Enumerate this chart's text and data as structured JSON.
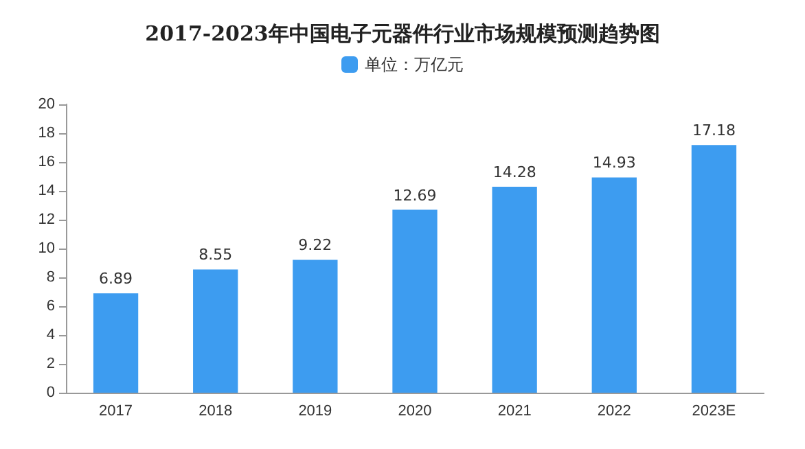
{
  "chart_data": {
    "type": "bar",
    "title": "2017-2023年中国电子元器件行业市场规模预测趋势图",
    "categories": [
      "2017",
      "2018",
      "2019",
      "2020",
      "2021",
      "2022",
      "2023E"
    ],
    "series": [
      {
        "name": "单位：万亿元",
        "color": "#3d9cf0",
        "values": [
          6.89,
          8.55,
          9.22,
          12.69,
          14.28,
          14.93,
          17.18
        ]
      }
    ],
    "ylim": [
      0,
      20
    ],
    "yticks": [
      0,
      2,
      4,
      6,
      8,
      10,
      12,
      14,
      16,
      18,
      20
    ],
    "grid": false,
    "legend": "top",
    "data_labels": true
  }
}
